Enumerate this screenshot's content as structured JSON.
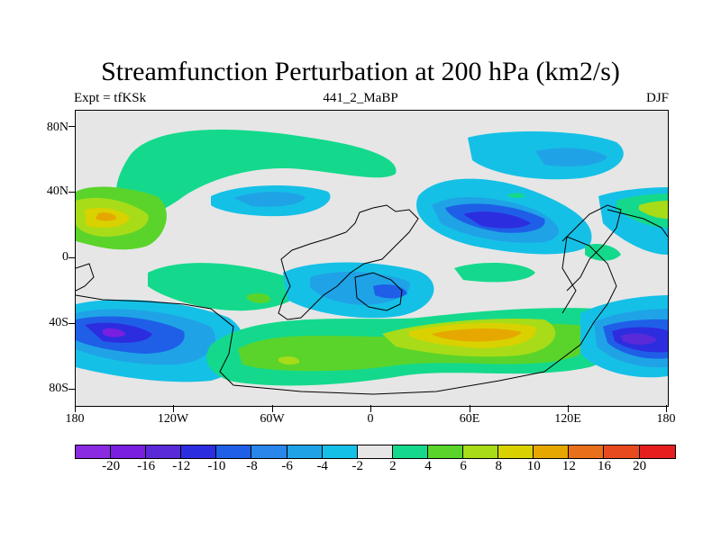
{
  "title": "Streamfunction Perturbation at 200 hPa (km2/s)",
  "subtitle_left": "Expt = tfKSk",
  "subtitle_center": "441_2_MaBP",
  "subtitle_right": "DJF",
  "lat_labels": [
    "80N",
    "40N",
    "0",
    "40S",
    "80S"
  ],
  "lon_labels": [
    "180",
    "120W",
    "60W",
    "0",
    "60E",
    "120E",
    "180"
  ],
  "colorbar": {
    "labels": [
      "-20",
      "-16",
      "-12",
      "-10",
      "-8",
      "-6",
      "-4",
      "-2",
      "2",
      "4",
      "6",
      "8",
      "10",
      "12",
      "16",
      "20"
    ],
    "colors": [
      "#8a2be2",
      "#7a1fe0",
      "#5a2ad8",
      "#2d2de0",
      "#1f5fe8",
      "#2a86ea",
      "#1fa3e6",
      "#15c0e6",
      "#e6e6e6",
      "#14d98c",
      "#5ad42a",
      "#a8dc18",
      "#d9d200",
      "#e6a800",
      "#e8701a",
      "#e84a20",
      "#e61e1e"
    ]
  },
  "colors": {
    "land_outline": "#000000",
    "background": "#e6e6e6"
  }
}
